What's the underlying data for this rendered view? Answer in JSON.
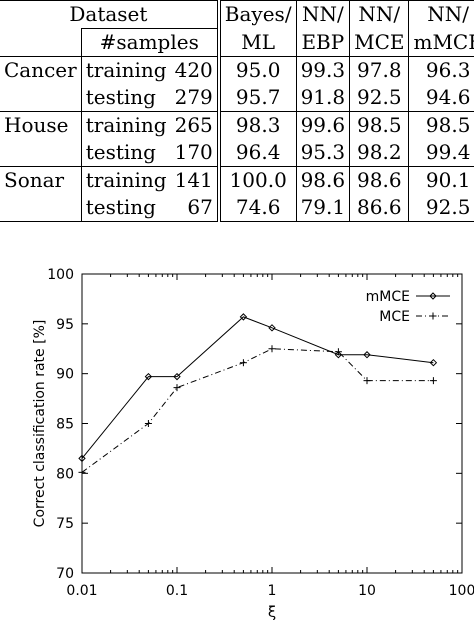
{
  "table": {
    "header1": [
      "Dataset",
      "Bayes/",
      "NN/",
      "NN/",
      "NN/"
    ],
    "header2": [
      "#samples",
      "ML",
      "EBP",
      "MCE",
      "mMCE"
    ],
    "rows": [
      {
        "dataset": "Cancer",
        "split": "training",
        "n": "420",
        "vals": [
          "95.0",
          "99.3",
          "97.8",
          "96.3"
        ]
      },
      {
        "dataset": "",
        "split": "testing",
        "n": "279",
        "vals": [
          "95.7",
          "91.8",
          "92.5",
          "94.6"
        ]
      },
      {
        "dataset": "House",
        "split": "training",
        "n": "265",
        "vals": [
          "98.3",
          "99.6",
          "98.5",
          "98.5"
        ]
      },
      {
        "dataset": "",
        "split": "testing",
        "n": "170",
        "vals": [
          "96.4",
          "95.3",
          "98.2",
          "99.4"
        ]
      },
      {
        "dataset": "Sonar",
        "split": "training",
        "n": "141",
        "vals": [
          "100.0",
          "98.6",
          "98.6",
          "90.1"
        ]
      },
      {
        "dataset": "",
        "split": "testing",
        "n": "67",
        "vals": [
          "74.6",
          "79.1",
          "86.6",
          "92.5"
        ]
      }
    ]
  },
  "chart_data": {
    "type": "line",
    "xlabel": "ξ",
    "ylabel": "Correct classification rate [%]",
    "xscale": "log",
    "xlim": [
      0.01,
      100
    ],
    "ylim": [
      70,
      100
    ],
    "xticks": [
      "0.01",
      "0.1",
      "1",
      "10",
      "100"
    ],
    "yticks": [
      "70",
      "75",
      "80",
      "85",
      "90",
      "95",
      "100"
    ],
    "legend_position": "top-right",
    "series": [
      {
        "name": "mMCE",
        "style": "solid",
        "marker": "diamond",
        "x": [
          0.01,
          0.05,
          0.1,
          0.5,
          1,
          5,
          10,
          50
        ],
        "y": [
          81.5,
          89.7,
          89.7,
          95.7,
          94.6,
          91.9,
          91.9,
          91.1
        ]
      },
      {
        "name": "MCE",
        "style": "dashdot",
        "marker": "plus",
        "x": [
          0.01,
          0.05,
          0.1,
          0.5,
          1,
          5,
          10,
          50
        ],
        "y": [
          80.1,
          85.0,
          88.6,
          91.1,
          92.5,
          92.2,
          89.3,
          89.3
        ]
      }
    ]
  }
}
